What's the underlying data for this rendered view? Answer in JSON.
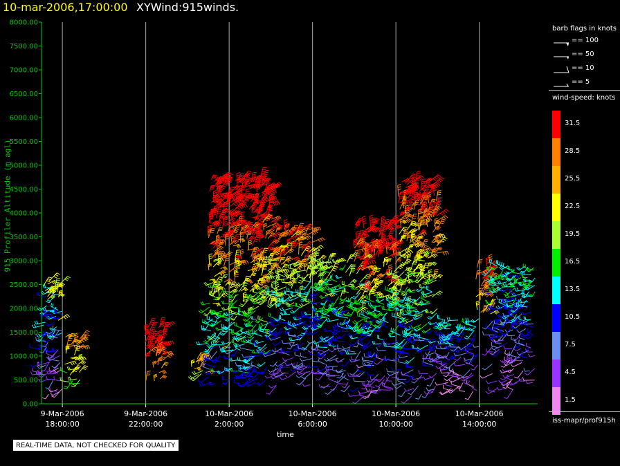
{
  "header": {
    "datetime": "10-mar-2006,17:00:00",
    "name": "XYWind:915winds."
  },
  "qc_notice": "REAL-TIME DATA, NOT CHECKED FOR QUALITY",
  "legend": {
    "flags_title": "barb flags in knots",
    "flags": [
      {
        "label": "== 100",
        "knots": 100
      },
      {
        "label": "== 50",
        "knots": 50
      },
      {
        "label": "== 10",
        "knots": 10
      },
      {
        "label": "== 5",
        "knots": 5
      }
    ],
    "speed_title": "wind-speed: knots",
    "speed_bins": [
      {
        "label": "31.5",
        "color": "#ff0000"
      },
      {
        "label": "28.5",
        "color": "#ff7f00"
      },
      {
        "label": "25.5",
        "color": "#ffb000"
      },
      {
        "label": "22.5",
        "color": "#ffff00"
      },
      {
        "label": "19.5",
        "color": "#aaff33"
      },
      {
        "label": "16.5",
        "color": "#00ee00"
      },
      {
        "label": "13.5",
        "color": "#00ffff"
      },
      {
        "label": "10.5",
        "color": "#0000ff"
      },
      {
        "label": "7.5",
        "color": "#6a8ff0"
      },
      {
        "label": "4.5",
        "color": "#9933ff"
      },
      {
        "label": "1.5",
        "color": "#ee88ee"
      }
    ],
    "source": "iss-mapr/prof915h"
  },
  "chart_data": {
    "type": "scatter",
    "title": "XYWind:915winds.",
    "xlabel": "time",
    "ylabel": "915 Profiler Altitude (m agl)",
    "ylim": [
      0,
      8000
    ],
    "xlim_hours": [
      17.0,
      40.8
    ],
    "x_time_origin": "9-Mar-2006 00:00:00",
    "grid": "vertical lines at labeled times",
    "y_ticks": [
      "0.00",
      "500.00",
      "1000.00",
      "1500.00",
      "2000.00",
      "2500.00",
      "3000.00",
      "3500.00",
      "4000.00",
      "4500.00",
      "5000.00",
      "5500.00",
      "6000.00",
      "6500.00",
      "7000.00",
      "7500.00",
      "8000.00"
    ],
    "x_ticks": [
      {
        "date": "9-Mar-2006",
        "time": "18:00:00",
        "hour": 18
      },
      {
        "date": "9-Mar-2006",
        "time": "22:00:00",
        "hour": 22
      },
      {
        "date": "10-Mar-2006",
        "time": "2:00:00",
        "hour": 26
      },
      {
        "date": "10-Mar-2006",
        "time": "6:00:00",
        "hour": 30
      },
      {
        "date": "10-Mar-2006",
        "time": "10:00:00",
        "hour": 34
      },
      {
        "date": "10-Mar-2006",
        "time": "14:00:00",
        "hour": 38
      }
    ],
    "segments": [
      {
        "t0": 17.0,
        "t1": 18.0,
        "base_m": 150,
        "top_m": 2600,
        "speed_knots": [
          3,
          6,
          9,
          13,
          22
        ]
      },
      {
        "t0": 18.1,
        "t1": 18.9,
        "base_m": 400,
        "top_m": 1500,
        "speed_knots": [
          18,
          22,
          25,
          28
        ]
      },
      {
        "t0": 21.9,
        "t1": 22.9,
        "base_m": 400,
        "top_m": 1650,
        "speed_knots": [
          28,
          31,
          32
        ]
      },
      {
        "t0": 24.2,
        "t1": 24.9,
        "base_m": 450,
        "top_m": 1000,
        "speed_knots": [
          20,
          23,
          26
        ]
      },
      {
        "t0": 25.0,
        "t1": 28.1,
        "base_m": 400,
        "top_m": 4750,
        "speed_knots": [
          10,
          14,
          18,
          22,
          28,
          32,
          33
        ]
      },
      {
        "t0": 28.2,
        "t1": 30.0,
        "base_m": 350,
        "top_m": 3700,
        "speed_knots": [
          5,
          8,
          11,
          14,
          20,
          24,
          30
        ]
      },
      {
        "t0": 30.1,
        "t1": 31.9,
        "base_m": 300,
        "top_m": 3100,
        "speed_knots": [
          6,
          9,
          12,
          16,
          20
        ]
      },
      {
        "t0": 32.0,
        "t1": 34.0,
        "base_m": 100,
        "top_m": 3800,
        "speed_knots": [
          4,
          8,
          12,
          16,
          22,
          30,
          32
        ]
      },
      {
        "t0": 34.1,
        "t1": 36.0,
        "base_m": 150,
        "top_m": 4700,
        "speed_knots": [
          6,
          10,
          14,
          19,
          23,
          28,
          32
        ]
      },
      {
        "t0": 36.1,
        "t1": 38.0,
        "base_m": 250,
        "top_m": 1800,
        "speed_knots": [
          2,
          5,
          8,
          11,
          14
        ]
      },
      {
        "t0": 37.8,
        "t1": 38.6,
        "base_m": 1700,
        "top_m": 2950,
        "speed_knots": [
          24,
          28,
          31
        ]
      },
      {
        "t0": 38.6,
        "t1": 40.7,
        "base_m": 200,
        "top_m": 2900,
        "speed_knots": [
          3,
          6,
          9,
          12,
          15
        ]
      }
    ]
  }
}
